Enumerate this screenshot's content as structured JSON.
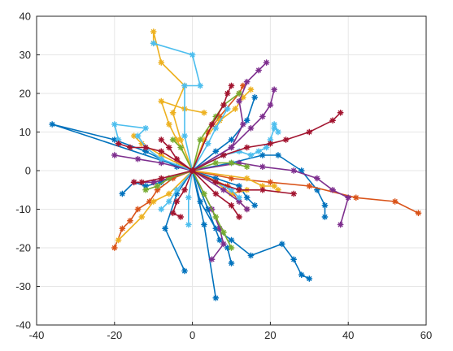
{
  "chart_data": {
    "type": "line",
    "title": "",
    "xlabel": "",
    "ylabel": "",
    "xlim": [
      -40,
      60
    ],
    "ylim": [
      -40,
      40
    ],
    "xticks": [
      -40,
      -20,
      0,
      20,
      40,
      60
    ],
    "yticks": [
      -40,
      -30,
      -20,
      -10,
      0,
      10,
      20,
      30,
      40
    ],
    "grid": true,
    "marker": "asterisk",
    "colors": {
      "blue": "#0072BD",
      "orange": "#D95319",
      "yellow": "#EDB120",
      "purple": "#7E2F8E",
      "green": "#77AC30",
      "cyan": "#4DBEEE",
      "red": "#A2142F",
      "grid": "#e6e6e6",
      "axes": "#262626"
    },
    "series": [
      {
        "color": "blue",
        "points": [
          [
            0,
            0
          ],
          [
            -36,
            12
          ],
          [
            -20,
            8
          ],
          [
            -12,
            5
          ],
          [
            -8,
            3
          ],
          [
            -4,
            1
          ],
          [
            0,
            0
          ]
        ]
      },
      {
        "color": "blue",
        "points": [
          [
            0,
            0
          ],
          [
            2,
            -8
          ],
          [
            6,
            -15
          ],
          [
            10,
            -18
          ],
          [
            15,
            -22
          ],
          [
            23,
            -19
          ],
          [
            26,
            -23
          ],
          [
            28,
            -27
          ],
          [
            30,
            -28
          ]
        ]
      },
      {
        "color": "blue",
        "points": [
          [
            0,
            0
          ],
          [
            -4,
            -6
          ],
          [
            -7,
            -15
          ],
          [
            -2,
            -26
          ]
        ]
      },
      {
        "color": "blue",
        "points": [
          [
            0,
            0
          ],
          [
            4,
            -10
          ],
          [
            7,
            -18
          ],
          [
            9,
            -20
          ],
          [
            10,
            -24
          ]
        ]
      },
      {
        "color": "blue",
        "points": [
          [
            0,
            0
          ],
          [
            3,
            -14
          ],
          [
            6,
            -33
          ]
        ]
      },
      {
        "color": "blue",
        "points": [
          [
            0,
            0
          ],
          [
            6,
            -2
          ],
          [
            12,
            -4
          ],
          [
            14,
            -7
          ],
          [
            16,
            -9
          ]
        ]
      },
      {
        "color": "blue",
        "points": [
          [
            0,
            0
          ],
          [
            6,
            5
          ],
          [
            10,
            8
          ],
          [
            14,
            13
          ],
          [
            16,
            19
          ]
        ]
      },
      {
        "color": "blue",
        "points": [
          [
            0,
            0
          ],
          [
            10,
            2
          ],
          [
            18,
            4
          ],
          [
            22,
            4
          ],
          [
            28,
            0
          ],
          [
            32,
            -5
          ],
          [
            34,
            -9
          ],
          [
            34,
            -12
          ]
        ]
      },
      {
        "color": "blue",
        "points": [
          [
            0,
            0
          ],
          [
            -8,
            -3
          ],
          [
            -12,
            -4
          ],
          [
            -15,
            -3
          ],
          [
            -18,
            -6
          ]
        ]
      },
      {
        "color": "orange",
        "points": [
          [
            0,
            0
          ],
          [
            10,
            -2
          ],
          [
            20,
            -3
          ],
          [
            30,
            -4
          ],
          [
            42,
            -7
          ],
          [
            52,
            -8
          ],
          [
            58,
            -11
          ]
        ]
      },
      {
        "color": "orange",
        "points": [
          [
            0,
            0
          ],
          [
            -5,
            -2
          ],
          [
            -9,
            -5
          ],
          [
            -11,
            -8
          ],
          [
            -14,
            -10
          ],
          [
            -16,
            -13
          ],
          [
            -18,
            -15
          ],
          [
            -20,
            -20
          ]
        ]
      },
      {
        "color": "orange",
        "points": [
          [
            0,
            0
          ],
          [
            4,
            10
          ],
          [
            7,
            14
          ],
          [
            12,
            20
          ],
          [
            13,
            22
          ]
        ]
      },
      {
        "color": "orange",
        "points": [
          [
            0,
            0
          ],
          [
            -6,
            -2
          ],
          [
            -10,
            -3
          ],
          [
            -15,
            -3
          ]
        ]
      },
      {
        "color": "orange",
        "points": [
          [
            0,
            0
          ],
          [
            9,
            -4
          ],
          [
            12,
            -8
          ],
          [
            14,
            -10
          ]
        ]
      },
      {
        "color": "yellow",
        "points": [
          [
            0,
            0
          ],
          [
            -3,
            8
          ],
          [
            -5,
            15
          ],
          [
            -2,
            22
          ],
          [
            -8,
            28
          ],
          [
            -10,
            36
          ],
          [
            -10,
            33
          ]
        ]
      },
      {
        "color": "yellow",
        "points": [
          [
            0,
            0
          ],
          [
            -6,
            -6
          ],
          [
            -10,
            -8
          ],
          [
            -13,
            -12
          ],
          [
            -19,
            -18
          ]
        ]
      },
      {
        "color": "yellow",
        "points": [
          [
            0,
            0
          ],
          [
            3,
            8
          ],
          [
            7,
            13
          ],
          [
            11,
            16
          ],
          [
            13,
            19
          ],
          [
            15,
            21
          ]
        ]
      },
      {
        "color": "yellow",
        "points": [
          [
            0,
            0
          ],
          [
            -4,
            8
          ],
          [
            -6,
            12
          ],
          [
            -8,
            18
          ],
          [
            -2,
            16
          ],
          [
            3,
            15
          ]
        ]
      },
      {
        "color": "yellow",
        "points": [
          [
            0,
            0
          ],
          [
            14,
            -2
          ],
          [
            18,
            -4
          ],
          [
            21,
            -4
          ],
          [
            22,
            -5
          ]
        ]
      },
      {
        "color": "yellow",
        "points": [
          [
            0,
            0
          ],
          [
            6,
            -3
          ],
          [
            10,
            -6
          ],
          [
            14,
            -5
          ]
        ]
      },
      {
        "color": "yellow",
        "points": [
          [
            0,
            0
          ],
          [
            -8,
            4
          ],
          [
            -13,
            7
          ],
          [
            -15,
            9
          ]
        ]
      },
      {
        "color": "purple",
        "points": [
          [
            0,
            0
          ],
          [
            10,
            6
          ],
          [
            13,
            12
          ],
          [
            12,
            18
          ],
          [
            14,
            23
          ],
          [
            17,
            26
          ],
          [
            19,
            28
          ]
        ]
      },
      {
        "color": "purple",
        "points": [
          [
            0,
            0
          ],
          [
            12,
            2
          ],
          [
            18,
            1
          ],
          [
            26,
            0
          ],
          [
            32,
            -2
          ],
          [
            36,
            -5
          ],
          [
            40,
            -7
          ],
          [
            38,
            -14
          ]
        ]
      },
      {
        "color": "purple",
        "points": [
          [
            0,
            0
          ],
          [
            5,
            -10
          ],
          [
            7,
            -15
          ],
          [
            8,
            -19
          ],
          [
            5,
            -23
          ]
        ]
      },
      {
        "color": "purple",
        "points": [
          [
            0,
            0
          ],
          [
            -8,
            2
          ],
          [
            -14,
            3
          ],
          [
            -20,
            4
          ]
        ]
      },
      {
        "color": "purple",
        "points": [
          [
            0,
            0
          ],
          [
            -6,
            -2
          ],
          [
            -10,
            -3
          ],
          [
            -15,
            -3
          ]
        ]
      },
      {
        "color": "purple",
        "points": [
          [
            0,
            0
          ],
          [
            8,
            -5
          ],
          [
            12,
            -8
          ],
          [
            14,
            -10
          ]
        ]
      },
      {
        "color": "purple",
        "points": [
          [
            0,
            0
          ],
          [
            10,
            6
          ],
          [
            15,
            11
          ],
          [
            18,
            14
          ],
          [
            20,
            17
          ],
          [
            21,
            21
          ]
        ]
      },
      {
        "color": "green",
        "points": [
          [
            0,
            0
          ],
          [
            2,
            8
          ],
          [
            6,
            14
          ],
          [
            8,
            17
          ],
          [
            12,
            20
          ]
        ]
      },
      {
        "color": "green",
        "points": [
          [
            0,
            0
          ],
          [
            3,
            -6
          ],
          [
            6,
            -12
          ],
          [
            8,
            -16
          ],
          [
            10,
            -20
          ]
        ]
      },
      {
        "color": "green",
        "points": [
          [
            0,
            0
          ],
          [
            -6,
            -2
          ],
          [
            -9,
            -4
          ],
          [
            -12,
            -5
          ]
        ]
      },
      {
        "color": "green",
        "points": [
          [
            0,
            0
          ],
          [
            -3,
            6
          ],
          [
            -5,
            8
          ]
        ]
      },
      {
        "color": "green",
        "points": [
          [
            0,
            0
          ],
          [
            6,
            2
          ],
          [
            10,
            2
          ],
          [
            14,
            1
          ]
        ]
      },
      {
        "color": "cyan",
        "points": [
          [
            0,
            0
          ],
          [
            -2,
            9
          ],
          [
            -2,
            22
          ],
          [
            2,
            22
          ],
          [
            0,
            30
          ],
          [
            -10,
            33
          ]
        ]
      },
      {
        "color": "cyan",
        "points": [
          [
            0,
            0
          ],
          [
            -8,
            3
          ],
          [
            -12,
            6
          ],
          [
            -14,
            9
          ],
          [
            -12,
            11
          ],
          [
            -20,
            12
          ],
          [
            -19,
            8
          ]
        ]
      },
      {
        "color": "cyan",
        "points": [
          [
            0,
            0
          ],
          [
            8,
            4
          ],
          [
            12,
            5
          ],
          [
            15,
            4
          ],
          [
            17,
            5
          ],
          [
            19,
            6
          ],
          [
            20,
            8
          ],
          [
            21,
            11
          ],
          [
            21,
            12
          ],
          [
            22,
            10
          ]
        ]
      },
      {
        "color": "cyan",
        "points": [
          [
            0,
            0
          ],
          [
            -4,
            -5
          ],
          [
            -6,
            -8
          ],
          [
            -8,
            -10
          ]
        ]
      },
      {
        "color": "cyan",
        "points": [
          [
            0,
            0
          ],
          [
            -1,
            -7
          ],
          [
            -1,
            -14
          ]
        ]
      },
      {
        "color": "cyan",
        "points": [
          [
            0,
            0
          ],
          [
            4,
            7
          ],
          [
            6,
            11
          ],
          [
            9,
            16
          ]
        ]
      },
      {
        "color": "cyan",
        "points": [
          [
            0,
            0
          ],
          [
            6,
            -3
          ],
          [
            10,
            -5
          ],
          [
            12,
            -7
          ]
        ]
      },
      {
        "color": "red",
        "points": [
          [
            0,
            0
          ],
          [
            8,
            4
          ],
          [
            14,
            6
          ],
          [
            20,
            7
          ],
          [
            24,
            8
          ],
          [
            30,
            10
          ],
          [
            36,
            13
          ],
          [
            38,
            15
          ]
        ]
      },
      {
        "color": "red",
        "points": [
          [
            0,
            0
          ],
          [
            -8,
            -2
          ],
          [
            -13,
            -3
          ],
          [
            -15,
            -3
          ]
        ]
      },
      {
        "color": "red",
        "points": [
          [
            0,
            0
          ],
          [
            5,
            12
          ],
          [
            8,
            17
          ],
          [
            9,
            20
          ],
          [
            10,
            22
          ]
        ]
      },
      {
        "color": "red",
        "points": [
          [
            0,
            0
          ],
          [
            -2,
            -5
          ],
          [
            -4,
            -8
          ],
          [
            -5,
            -11
          ],
          [
            -3,
            -12
          ]
        ]
      },
      {
        "color": "red",
        "points": [
          [
            0,
            0
          ],
          [
            6,
            -3
          ],
          [
            12,
            -5
          ],
          [
            18,
            -5
          ],
          [
            26,
            -6
          ]
        ]
      },
      {
        "color": "red",
        "points": [
          [
            0,
            0
          ],
          [
            -8,
            5
          ],
          [
            -12,
            6
          ],
          [
            -16,
            6
          ],
          [
            -19,
            7
          ]
        ]
      },
      {
        "color": "red",
        "points": [
          [
            0,
            0
          ],
          [
            -4,
            3
          ],
          [
            -6,
            6
          ],
          [
            -8,
            8
          ]
        ]
      },
      {
        "color": "red",
        "points": [
          [
            0,
            0
          ],
          [
            6,
            -6
          ],
          [
            10,
            -9
          ],
          [
            12,
            -12
          ]
        ]
      }
    ]
  }
}
